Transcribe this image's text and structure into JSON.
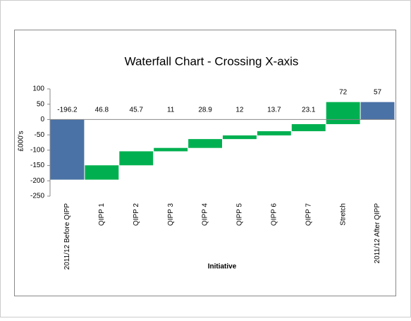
{
  "chart_data": {
    "type": "waterfall",
    "title": "Waterfall Chart - Crossing X-axis",
    "x_label": "Initiative",
    "y_label": "£000's",
    "categories": [
      "2011/12 Before QIPP",
      "QIPP 1",
      "QIPP 2",
      "QIPP 3",
      "QIPP 4",
      "QIPP 5",
      "QIPP 6",
      "QIPP 7",
      "Stretch",
      "2011/12 After QIPP"
    ],
    "values": [
      -196.2,
      46.8,
      45.7,
      11,
      28.9,
      12,
      13.7,
      23.1,
      72,
      57
    ],
    "is_total": [
      true,
      false,
      false,
      false,
      false,
      false,
      false,
      false,
      false,
      true
    ],
    "total_color": "#4a72a6",
    "delta_color": "#00b050",
    "ylim": [
      -250,
      100
    ],
    "yticks": [
      -250,
      -200,
      -150,
      -100,
      -50,
      0,
      50,
      100
    ]
  }
}
